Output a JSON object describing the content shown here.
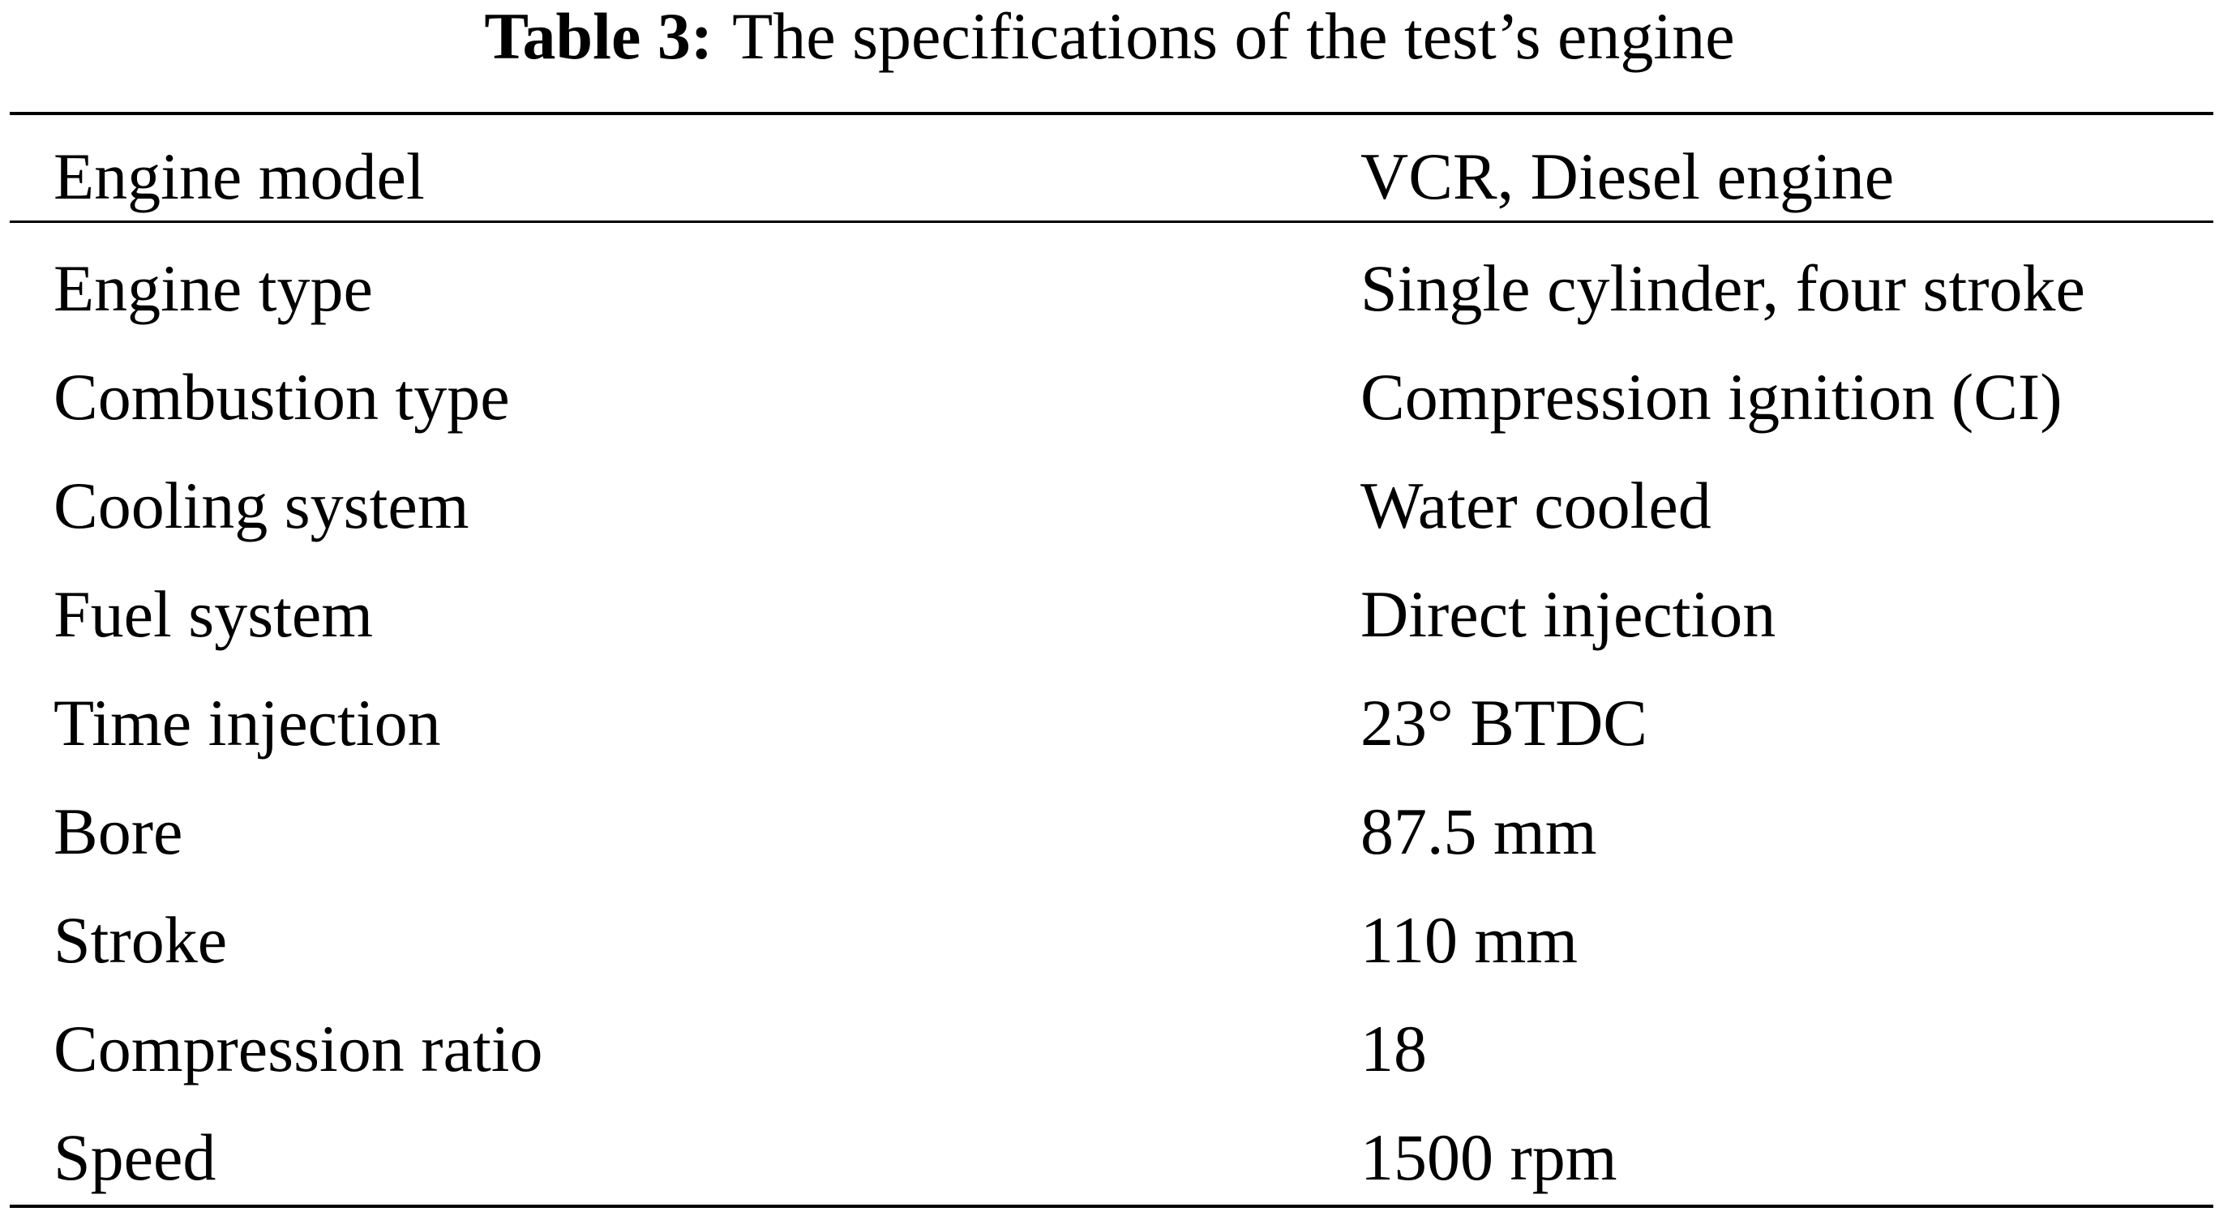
{
  "caption": {
    "label": "Table 3:",
    "title": "The specifications of the test’s engine"
  },
  "table": {
    "header": [
      "Engine model",
      "VCR, Diesel engine"
    ],
    "rows": [
      [
        "Engine type",
        "Single cylinder, four stroke"
      ],
      [
        "Combustion type",
        "Compression ignition (CI)"
      ],
      [
        "Cooling system",
        "Water cooled"
      ],
      [
        "Fuel system",
        "Direct injection"
      ],
      [
        "Time injection",
        "23° BTDC"
      ],
      [
        "Bore",
        "87.5 mm"
      ],
      [
        "Stroke",
        "110 mm"
      ],
      [
        "Compression ratio",
        "18"
      ],
      [
        "Speed",
        "1500 rpm"
      ]
    ]
  }
}
